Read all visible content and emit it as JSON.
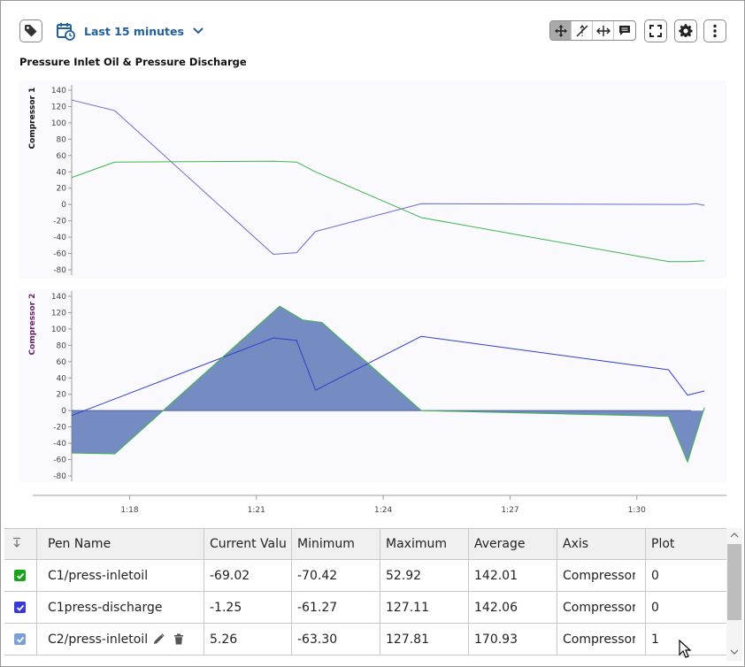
{
  "toolbar": {
    "tag_icon": "tag-icon",
    "time_range_label": "Last 15 minutes",
    "calendar_icon": "calendar-clock-icon",
    "tools": [
      "pan-icon",
      "crosshair-icon",
      "horizontal-zoom-icon",
      "annotation-icon"
    ],
    "fullscreen_icon": "fullscreen-icon",
    "settings_icon": "gear-icon",
    "more_icon": "kebab-menu-icon"
  },
  "chart_title": "Pressure Inlet Oil & Pressure Discharge",
  "chart_data": [
    {
      "type": "line",
      "ylabel": "Compressor 1",
      "ylim": [
        -80,
        140
      ],
      "yticks": [
        "140",
        "120",
        "100",
        "80",
        "60",
        "40",
        "20",
        "0",
        "-20",
        "-40",
        "-60",
        "-80"
      ],
      "series": [
        {
          "color": "#6a6ad0",
          "x": [
            16.63,
            17.65,
            21.4,
            21.95,
            22.4,
            24.9,
            31.2,
            31.4,
            31.6
          ],
          "values": [
            128,
            115,
            -61,
            -59,
            -33,
            1,
            0,
            1,
            -1
          ]
        },
        {
          "color": "#3fb54a",
          "x": [
            16.63,
            17.65,
            21.4,
            21.95,
            22.4,
            24.9,
            30.75,
            31.2,
            31.6
          ],
          "values": [
            33,
            52,
            53,
            52,
            40,
            -16,
            -70,
            -70,
            -69
          ]
        }
      ]
    },
    {
      "type": "area",
      "ylabel": "Compressor 2",
      "ylim": [
        -80,
        140
      ],
      "yticks": [
        "140",
        "120",
        "100",
        "80",
        "60",
        "40",
        "20",
        "0",
        "-20",
        "-40",
        "-60",
        "-80"
      ],
      "series": [
        {
          "color": "#2f3fc8",
          "x": [
            16.63,
            21.4,
            21.95,
            22.4,
            24.9,
            30.75,
            31.2,
            31.6
          ],
          "values": [
            -6,
            89,
            86,
            25,
            91,
            50,
            19,
            24
          ]
        },
        {
          "color": "#3fb54a",
          "fill": "#5c78b6",
          "x": [
            16.63,
            17.65,
            21.55,
            22.1,
            22.55,
            24.9,
            30.75,
            31.2,
            31.6
          ],
          "values": [
            -52,
            -53,
            128,
            111,
            108,
            0,
            -7,
            -63,
            4
          ]
        }
      ]
    }
  ],
  "x_axis": {
    "ticks": [
      "1:18",
      "1:21",
      "1:24",
      "1:27",
      "1:30"
    ],
    "tick_values": [
      18,
      21,
      24,
      27,
      30
    ],
    "range": [
      16.63,
      31.7
    ]
  },
  "table": {
    "headers": [
      "Pen Name",
      "Current Valu",
      "Minimum",
      "Maximum",
      "Average",
      "Axis",
      "Plot"
    ],
    "sort_icon": "sort-icon",
    "rows": [
      {
        "checkbox_color": "#1aa31a",
        "name": "C1/press-inletoil",
        "current": "-69.02",
        "minimum": "-70.42",
        "maximum": "52.92",
        "average": "142.01",
        "axis": "Compressor",
        "plot": "0"
      },
      {
        "checkbox_color": "#3a3ad8",
        "name": "C1press-discharge",
        "current": "-1.25",
        "minimum": "-61.27",
        "maximum": "127.11",
        "average": "142.06",
        "axis": "Compressor",
        "plot": "0"
      },
      {
        "checkbox_color": "#7b9fd6",
        "name": "C2/press-inletoil",
        "current": "5.26",
        "minimum": "-63.30",
        "maximum": "127.81",
        "average": "170.93",
        "axis": "Compressor",
        "plot": "1"
      }
    ],
    "edit_icon": "pencil-icon",
    "delete_icon": "trash-icon"
  }
}
